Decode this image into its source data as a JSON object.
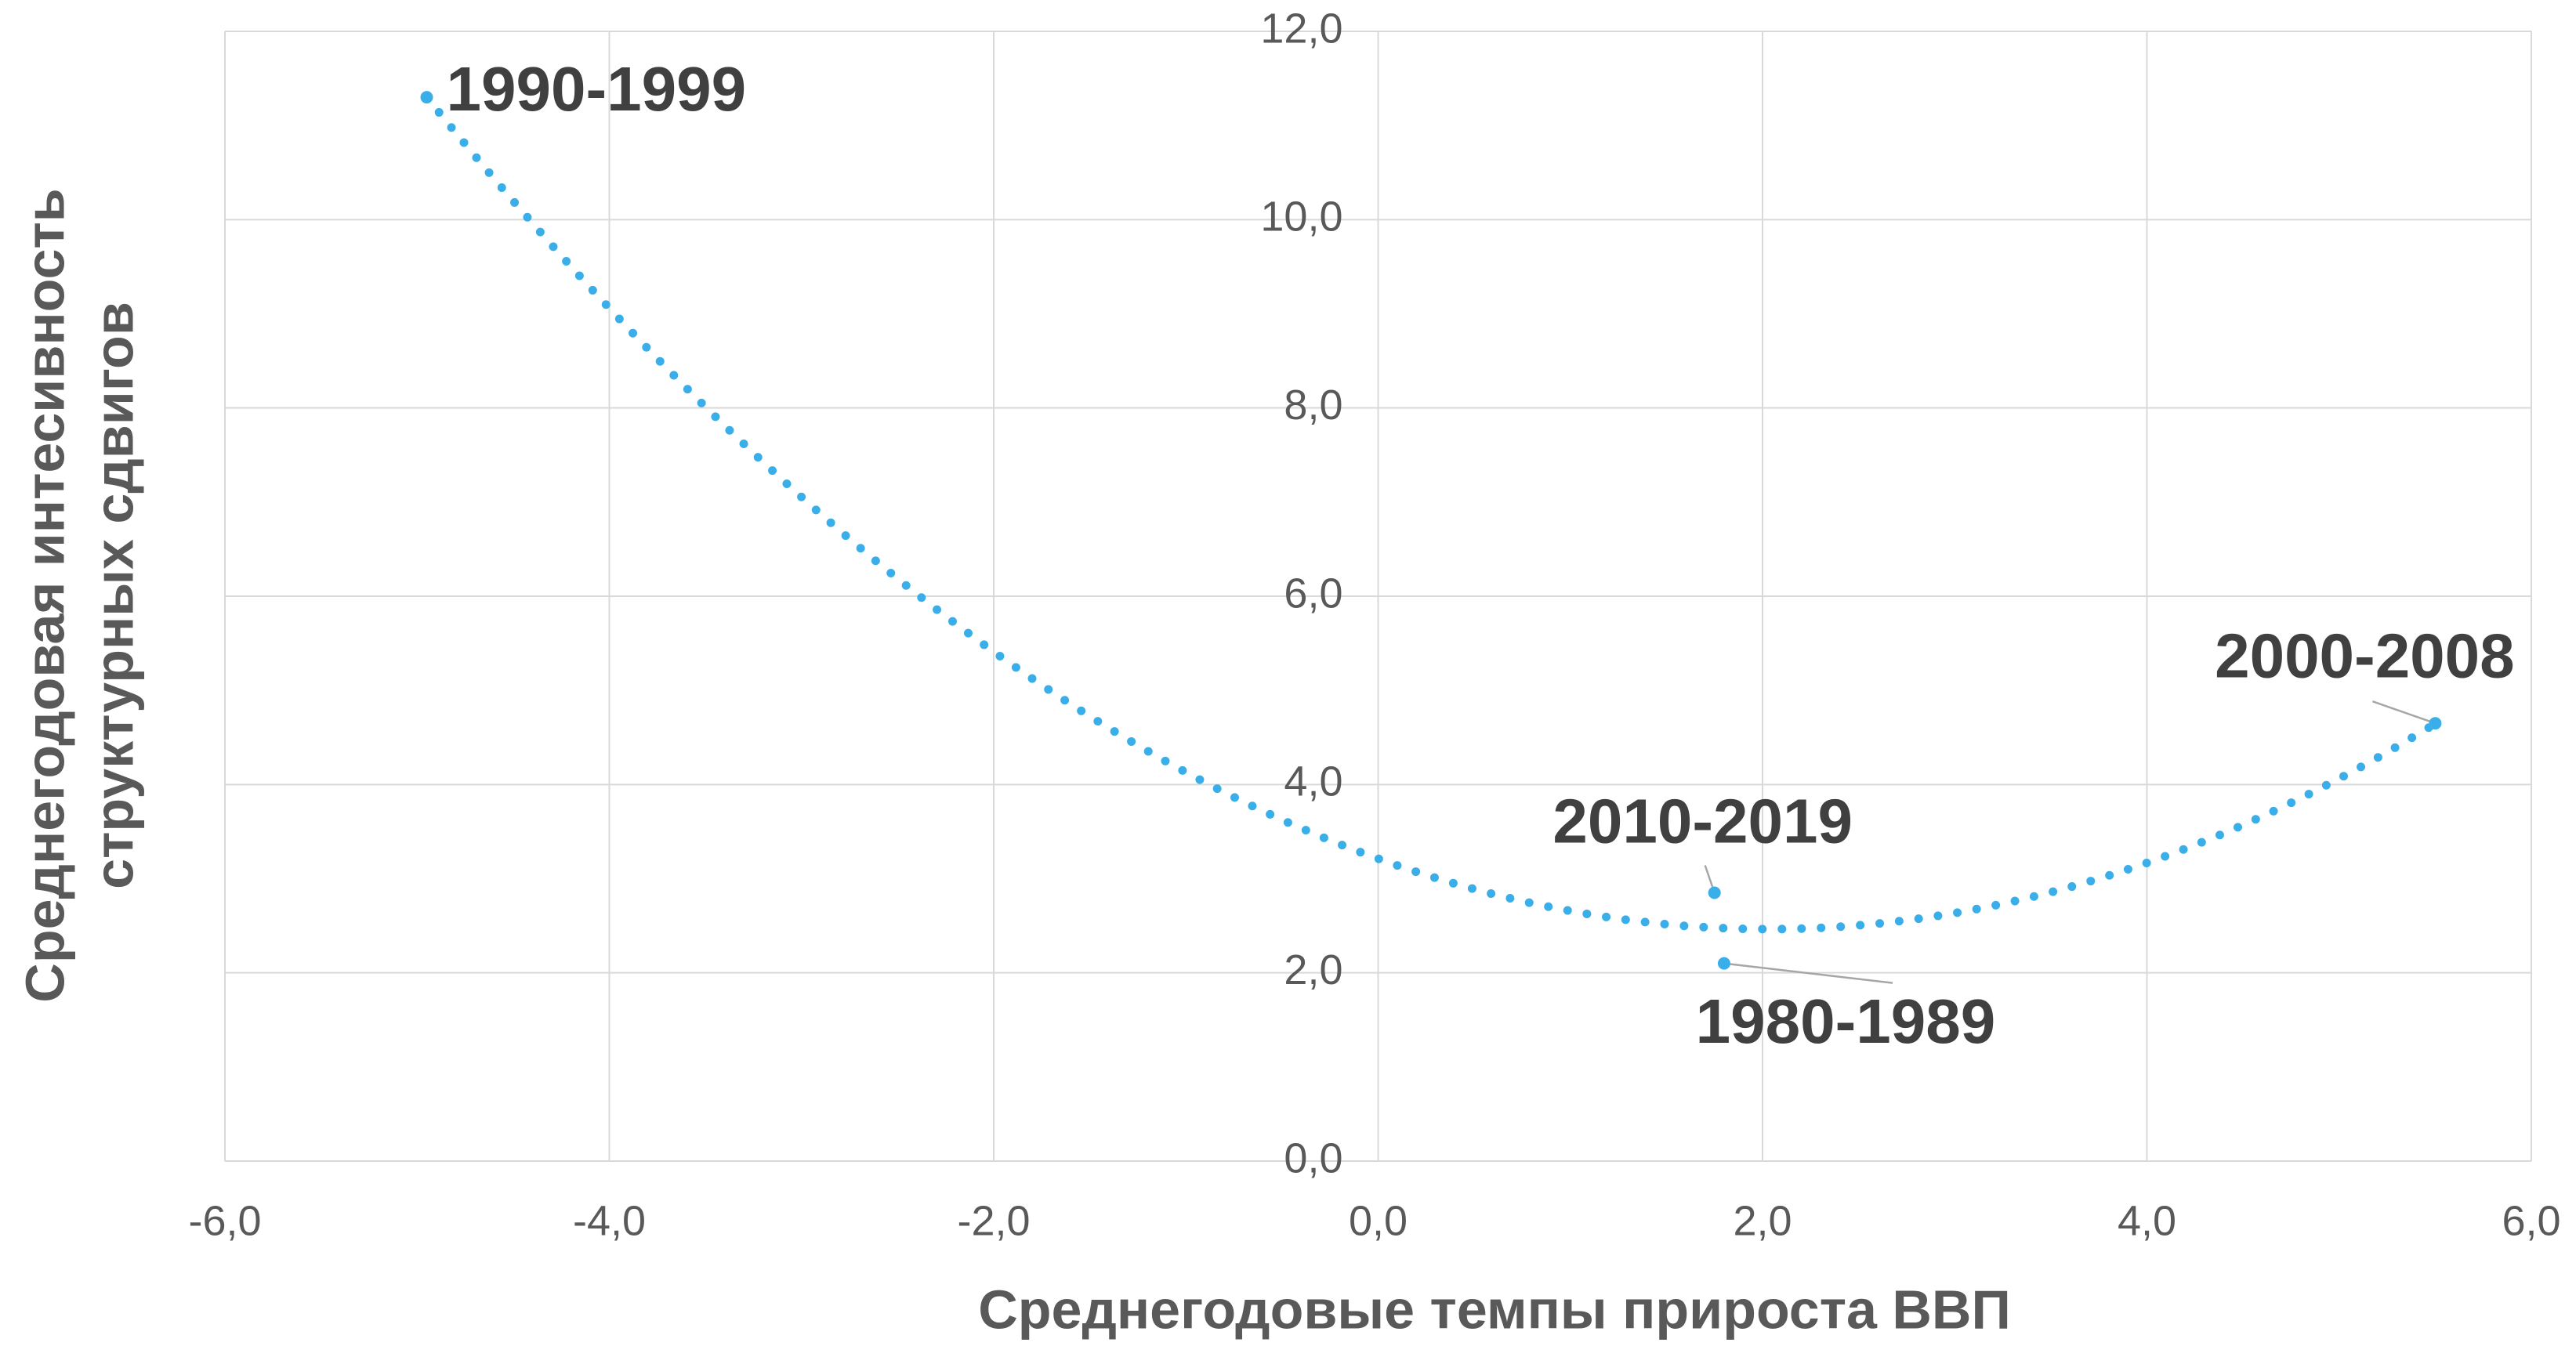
{
  "chart_data": {
    "type": "scatter",
    "x_label": "Среднегодовые темпы  прироста ВВП",
    "y_label": [
      "Среднегодовая интесивность",
      "структурных сдвигов"
    ],
    "points": [
      {
        "label": "1990-1999",
        "x": -4.95,
        "y": 11.3
      },
      {
        "label": "2000-2008",
        "x": 5.5,
        "y": 4.65
      },
      {
        "label": "2010-2019",
        "x": 1.75,
        "y": 2.85
      },
      {
        "label": "1980-1989",
        "x": 1.8,
        "y": 2.1
      }
    ],
    "color": "#3aaee8",
    "trendline": {
      "kind": "polynomial",
      "order": 2
    },
    "xlim": [
      -6,
      6
    ],
    "xticks": [
      {
        "value": -6,
        "label": "-6,0"
      },
      {
        "value": -4,
        "label": "-4,0"
      },
      {
        "value": -2,
        "label": "-2,0"
      },
      {
        "value": 0,
        "label": "0,0"
      },
      {
        "value": 2,
        "label": "2,0"
      },
      {
        "value": 4,
        "label": "4,0"
      },
      {
        "value": 6,
        "label": "6,0"
      }
    ],
    "ylim": [
      0,
      12
    ],
    "yticks": [
      {
        "value": 0,
        "label": "0,0"
      },
      {
        "value": 2,
        "label": "2,0"
      },
      {
        "value": 4,
        "label": "4,0"
      },
      {
        "value": 6,
        "label": "6,0"
      },
      {
        "value": 8,
        "label": "8,0"
      },
      {
        "value": 10,
        "label": "10,0"
      },
      {
        "value": 12,
        "label": "12,0"
      }
    ],
    "grid": true
  }
}
